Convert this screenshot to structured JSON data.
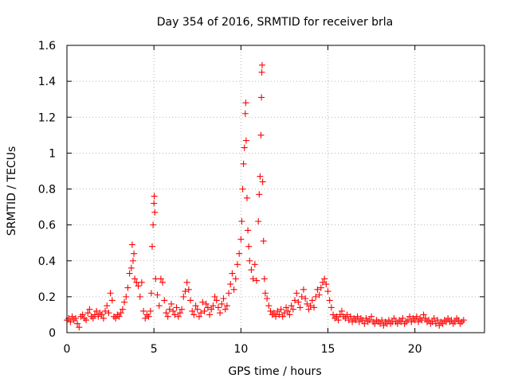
{
  "chart_data": {
    "type": "scatter",
    "title": "Day 354 of 2016, SRMTID for receiver brla",
    "xlabel": "GPS time / hours",
    "ylabel": "SRMTID / TECUs",
    "xlim": [
      0,
      24
    ],
    "ylim": [
      0,
      1.6
    ],
    "xticks": [
      0,
      5,
      10,
      15,
      20
    ],
    "xtick_labels": [
      "0",
      "5",
      "10",
      "15",
      "20"
    ],
    "yticks": [
      0,
      0.2,
      0.4,
      0.6,
      0.8,
      1.0,
      1.2,
      1.4,
      1.6
    ],
    "ytick_labels": [
      "0",
      "0.2",
      "0.4",
      "0.6",
      "0.8",
      "1",
      "1.2",
      "1.4",
      "1.6"
    ],
    "grid": true,
    "marker": "+",
    "marker_color": "#ff0000",
    "series": [
      {
        "name": "SRMTID",
        "points": [
          [
            0.0,
            0.07
          ],
          [
            0.1,
            0.08
          ],
          [
            0.2,
            0.06
          ],
          [
            0.3,
            0.09
          ],
          [
            0.4,
            0.07
          ],
          [
            0.5,
            0.08
          ],
          [
            0.6,
            0.05
          ],
          [
            0.7,
            0.03
          ],
          [
            0.8,
            0.09
          ],
          [
            0.9,
            0.1
          ],
          [
            1.0,
            0.08
          ],
          [
            1.1,
            0.07
          ],
          [
            1.2,
            0.11
          ],
          [
            1.3,
            0.13
          ],
          [
            1.4,
            0.09
          ],
          [
            1.5,
            0.08
          ],
          [
            1.6,
            0.1
          ],
          [
            1.7,
            0.12
          ],
          [
            1.8,
            0.09
          ],
          [
            1.9,
            0.11
          ],
          [
            2.0,
            0.1
          ],
          [
            2.1,
            0.08
          ],
          [
            2.2,
            0.12
          ],
          [
            2.3,
            0.15
          ],
          [
            2.4,
            0.11
          ],
          [
            2.5,
            0.22
          ],
          [
            2.6,
            0.18
          ],
          [
            2.7,
            0.09
          ],
          [
            2.8,
            0.08
          ],
          [
            2.9,
            0.1
          ],
          [
            3.0,
            0.09
          ],
          [
            3.1,
            0.11
          ],
          [
            3.2,
            0.13
          ],
          [
            3.3,
            0.17
          ],
          [
            3.4,
            0.2
          ],
          [
            3.5,
            0.25
          ],
          [
            3.6,
            0.33
          ],
          [
            3.7,
            0.36
          ],
          [
            3.75,
            0.49
          ],
          [
            3.8,
            0.4
          ],
          [
            3.85,
            0.44
          ],
          [
            3.9,
            0.3
          ],
          [
            4.0,
            0.28
          ],
          [
            4.1,
            0.26
          ],
          [
            4.2,
            0.2
          ],
          [
            4.3,
            0.28
          ],
          [
            4.4,
            0.12
          ],
          [
            4.5,
            0.08
          ],
          [
            4.6,
            0.1
          ],
          [
            4.7,
            0.09
          ],
          [
            4.8,
            0.12
          ],
          [
            4.85,
            0.22
          ],
          [
            4.9,
            0.48
          ],
          [
            4.95,
            0.6
          ],
          [
            5.0,
            0.72
          ],
          [
            5.02,
            0.76
          ],
          [
            5.05,
            0.67
          ],
          [
            5.1,
            0.3
          ],
          [
            5.2,
            0.21
          ],
          [
            5.3,
            0.15
          ],
          [
            5.4,
            0.3
          ],
          [
            5.5,
            0.28
          ],
          [
            5.6,
            0.18
          ],
          [
            5.7,
            0.11
          ],
          [
            5.8,
            0.09
          ],
          [
            5.9,
            0.13
          ],
          [
            6.0,
            0.16
          ],
          [
            6.1,
            0.12
          ],
          [
            6.2,
            0.1
          ],
          [
            6.3,
            0.14
          ],
          [
            6.4,
            0.09
          ],
          [
            6.5,
            0.11
          ],
          [
            6.6,
            0.13
          ],
          [
            6.7,
            0.2
          ],
          [
            6.8,
            0.23
          ],
          [
            6.9,
            0.28
          ],
          [
            7.0,
            0.24
          ],
          [
            7.1,
            0.18
          ],
          [
            7.2,
            0.12
          ],
          [
            7.3,
            0.1
          ],
          [
            7.4,
            0.15
          ],
          [
            7.5,
            0.13
          ],
          [
            7.6,
            0.09
          ],
          [
            7.7,
            0.11
          ],
          [
            7.8,
            0.17
          ],
          [
            7.9,
            0.12
          ],
          [
            8.0,
            0.16
          ],
          [
            8.1,
            0.14
          ],
          [
            8.2,
            0.1
          ],
          [
            8.3,
            0.13
          ],
          [
            8.4,
            0.15
          ],
          [
            8.5,
            0.2
          ],
          [
            8.6,
            0.18
          ],
          [
            8.7,
            0.14
          ],
          [
            8.8,
            0.11
          ],
          [
            8.9,
            0.16
          ],
          [
            9.0,
            0.19
          ],
          [
            9.1,
            0.13
          ],
          [
            9.2,
            0.15
          ],
          [
            9.3,
            0.22
          ],
          [
            9.4,
            0.27
          ],
          [
            9.5,
            0.33
          ],
          [
            9.6,
            0.24
          ],
          [
            9.7,
            0.3
          ],
          [
            9.8,
            0.38
          ],
          [
            9.9,
            0.44
          ],
          [
            10.0,
            0.52
          ],
          [
            10.05,
            0.62
          ],
          [
            10.1,
            0.8
          ],
          [
            10.15,
            0.94
          ],
          [
            10.2,
            1.03
          ],
          [
            10.25,
            1.22
          ],
          [
            10.28,
            1.28
          ],
          [
            10.3,
            1.07
          ],
          [
            10.35,
            0.75
          ],
          [
            10.4,
            0.57
          ],
          [
            10.45,
            0.48
          ],
          [
            10.5,
            0.4
          ],
          [
            10.6,
            0.35
          ],
          [
            10.7,
            0.3
          ],
          [
            10.8,
            0.38
          ],
          [
            10.9,
            0.29
          ],
          [
            11.0,
            0.62
          ],
          [
            11.05,
            0.77
          ],
          [
            11.1,
            0.87
          ],
          [
            11.15,
            1.1
          ],
          [
            11.18,
            1.31
          ],
          [
            11.2,
            1.45
          ],
          [
            11.22,
            1.49
          ],
          [
            11.25,
            0.84
          ],
          [
            11.3,
            0.51
          ],
          [
            11.35,
            0.3
          ],
          [
            11.4,
            0.22
          ],
          [
            11.5,
            0.19
          ],
          [
            11.6,
            0.15
          ],
          [
            11.7,
            0.12
          ],
          [
            11.8,
            0.1
          ],
          [
            11.9,
            0.11
          ],
          [
            12.0,
            0.09
          ],
          [
            12.1,
            0.12
          ],
          [
            12.2,
            0.1
          ],
          [
            12.3,
            0.13
          ],
          [
            12.4,
            0.09
          ],
          [
            12.5,
            0.11
          ],
          [
            12.6,
            0.14
          ],
          [
            12.7,
            0.12
          ],
          [
            12.8,
            0.1
          ],
          [
            12.9,
            0.15
          ],
          [
            13.0,
            0.13
          ],
          [
            13.1,
            0.18
          ],
          [
            13.2,
            0.22
          ],
          [
            13.3,
            0.17
          ],
          [
            13.4,
            0.14
          ],
          [
            13.5,
            0.2
          ],
          [
            13.6,
            0.24
          ],
          [
            13.7,
            0.19
          ],
          [
            13.8,
            0.16
          ],
          [
            13.9,
            0.13
          ],
          [
            14.0,
            0.15
          ],
          [
            14.1,
            0.18
          ],
          [
            14.2,
            0.14
          ],
          [
            14.3,
            0.2
          ],
          [
            14.4,
            0.24
          ],
          [
            14.5,
            0.21
          ],
          [
            14.6,
            0.25
          ],
          [
            14.7,
            0.28
          ],
          [
            14.8,
            0.3
          ],
          [
            14.9,
            0.27
          ],
          [
            15.0,
            0.23
          ],
          [
            15.1,
            0.18
          ],
          [
            15.2,
            0.14
          ],
          [
            15.3,
            0.1
          ],
          [
            15.4,
            0.08
          ],
          [
            15.5,
            0.09
          ],
          [
            15.6,
            0.07
          ],
          [
            15.7,
            0.1
          ],
          [
            15.8,
            0.12
          ],
          [
            15.9,
            0.09
          ],
          [
            16.0,
            0.08
          ],
          [
            16.1,
            0.1
          ],
          [
            16.2,
            0.07
          ],
          [
            16.3,
            0.09
          ],
          [
            16.4,
            0.06
          ],
          [
            16.5,
            0.08
          ],
          [
            16.6,
            0.07
          ],
          [
            16.7,
            0.09
          ],
          [
            16.8,
            0.06
          ],
          [
            16.9,
            0.08
          ],
          [
            17.0,
            0.07
          ],
          [
            17.1,
            0.05
          ],
          [
            17.2,
            0.08
          ],
          [
            17.3,
            0.06
          ],
          [
            17.4,
            0.07
          ],
          [
            17.5,
            0.09
          ],
          [
            17.6,
            0.06
          ],
          [
            17.7,
            0.05
          ],
          [
            17.8,
            0.07
          ],
          [
            17.9,
            0.06
          ],
          [
            18.0,
            0.05
          ],
          [
            18.1,
            0.07
          ],
          [
            18.2,
            0.04
          ],
          [
            18.3,
            0.06
          ],
          [
            18.4,
            0.05
          ],
          [
            18.5,
            0.07
          ],
          [
            18.6,
            0.05
          ],
          [
            18.7,
            0.06
          ],
          [
            18.8,
            0.08
          ],
          [
            18.9,
            0.06
          ],
          [
            19.0,
            0.05
          ],
          [
            19.1,
            0.07
          ],
          [
            19.2,
            0.06
          ],
          [
            19.3,
            0.08
          ],
          [
            19.4,
            0.05
          ],
          [
            19.5,
            0.06
          ],
          [
            19.6,
            0.07
          ],
          [
            19.7,
            0.09
          ],
          [
            19.8,
            0.06
          ],
          [
            19.9,
            0.08
          ],
          [
            20.0,
            0.07
          ],
          [
            20.1,
            0.09
          ],
          [
            20.2,
            0.06
          ],
          [
            20.3,
            0.08
          ],
          [
            20.4,
            0.07
          ],
          [
            20.5,
            0.1
          ],
          [
            20.6,
            0.08
          ],
          [
            20.7,
            0.06
          ],
          [
            20.8,
            0.07
          ],
          [
            20.9,
            0.05
          ],
          [
            21.0,
            0.06
          ],
          [
            21.1,
            0.08
          ],
          [
            21.2,
            0.05
          ],
          [
            21.3,
            0.07
          ],
          [
            21.4,
            0.04
          ],
          [
            21.5,
            0.06
          ],
          [
            21.6,
            0.05
          ],
          [
            21.7,
            0.07
          ],
          [
            21.8,
            0.06
          ],
          [
            21.9,
            0.08
          ],
          [
            22.0,
            0.06
          ],
          [
            22.1,
            0.07
          ],
          [
            22.2,
            0.05
          ],
          [
            22.3,
            0.06
          ],
          [
            22.4,
            0.08
          ],
          [
            22.5,
            0.07
          ],
          [
            22.6,
            0.05
          ],
          [
            22.7,
            0.06
          ],
          [
            22.8,
            0.07
          ]
        ]
      }
    ]
  }
}
